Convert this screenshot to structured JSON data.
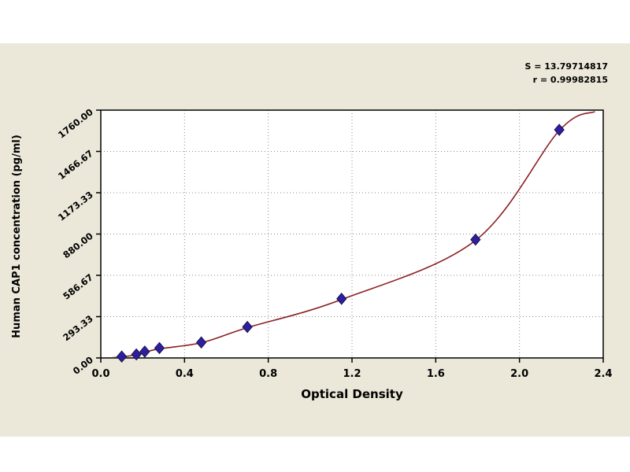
{
  "chart_data": {
    "type": "scatter",
    "title": "",
    "xlabel": "Optical Density",
    "ylabel": "Human CAP1 concentration (pg/ml)",
    "xlim": [
      0,
      2.4
    ],
    "ylim": [
      0,
      1760
    ],
    "grid": true,
    "x_ticks": [
      0.0,
      0.4,
      0.8,
      1.2,
      1.6,
      2.0,
      2.4
    ],
    "x_tick_labels": [
      "0.0",
      "0.4",
      "0.8",
      "1.2",
      "1.6",
      "2.0",
      "2.4"
    ],
    "y_ticks": [
      0,
      293.33,
      586.67,
      880,
      1173.33,
      1466.67,
      1760
    ],
    "y_tick_labels": [
      "0.00",
      "293.33",
      "586.67",
      "880.00",
      "1173.33",
      "1466.67",
      "1760.00"
    ],
    "points": {
      "x": [
        0.1,
        0.17,
        0.21,
        0.28,
        0.48,
        0.7,
        1.15,
        1.79,
        2.19
      ],
      "y": [
        10,
        25,
        45,
        70,
        110,
        220,
        420,
        840,
        1620
      ]
    },
    "curve": {
      "x": [
        0.04,
        0.1,
        0.17,
        0.21,
        0.28,
        0.48,
        0.7,
        1.15,
        1.79,
        2.19,
        2.36
      ],
      "y": [
        0,
        8,
        22,
        40,
        65,
        108,
        215,
        415,
        835,
        1615,
        1750
      ]
    },
    "annotations": [
      "S = 13.79714817",
      "r = 0.99982815"
    ],
    "point_color": "#2f1f9e",
    "point_edge_color": "#14104f",
    "curve_color": "#8b1f24",
    "grid_color": "#8a8a8a",
    "background": "#ebe8d9",
    "plot_background": "#ffffff",
    "legend": null
  }
}
